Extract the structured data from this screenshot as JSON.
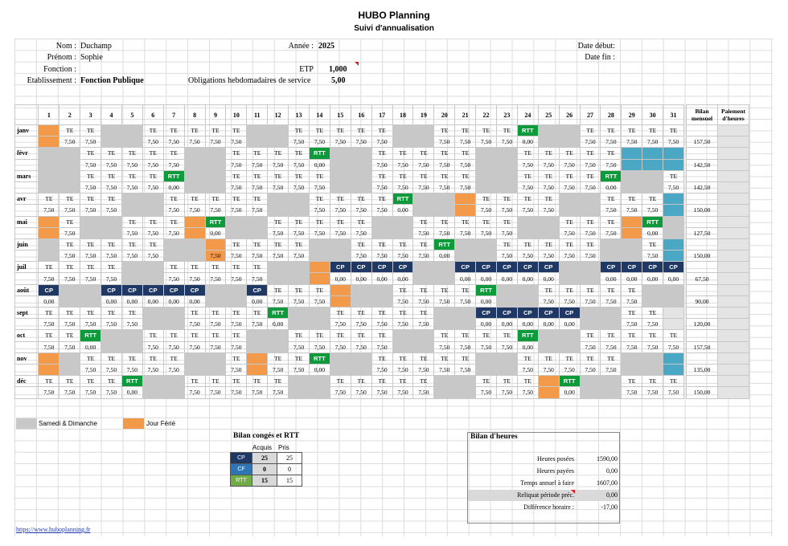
{
  "header": {
    "title": "HUBO Planning",
    "subtitle": "Suivi d'annualisation"
  },
  "info": {
    "nom_label": "Nom :",
    "nom": "Duchamp",
    "prenom_label": "Prénom :",
    "prenom": "Sophie",
    "fonction_label": "Fonction :",
    "fonction": "",
    "etab_label": "Etablissement :",
    "etab": "Fonction Publique",
    "annee_label": "Année :",
    "annee": "2025",
    "etp_label": "ETP",
    "etp": "1,000",
    "oblig_label": "Obligations hebdomadaires de service",
    "oblig": "5,00",
    "debut_label": "Date début:",
    "fin_label": "Date fin :"
  },
  "planning": {
    "col_bilan": "Bilan mensuel",
    "col_paiement": "Paiement d'heures",
    "days": [
      "1",
      "2",
      "3",
      "4",
      "5",
      "6",
      "7",
      "8",
      "9",
      "10",
      "11",
      "12",
      "13",
      "14",
      "15",
      "16",
      "17",
      "18",
      "19",
      "20",
      "21",
      "22",
      "23",
      "24",
      "25",
      "26",
      "27",
      "28",
      "29",
      "30",
      "31"
    ],
    "months": [
      {
        "name": "janv",
        "bilan": "157,50",
        "codes": "o,TE,TE,g,g,TE,TE,TE,TE,TE,g,g,TE,TE,TE,TE,TE,g,g,TE,TE,TE,TE,RTT,g,g,TE,TE,TE,TE,TE",
        "hours": "o,7,50,7,50,g,g,7,50,7,50,7,50,7,50,7,50,g,g,7,50,7,50,7,50,7,50,7,50,g,g,7,50,7,50,7,50,7,50,0,00,g,g,7,50,7,50,7,50,7,50,7,50"
      },
      {
        "name": "févr",
        "bilan": "142,50",
        "codes": "g,g,TE,TE,TE,TE,TE,g,g,TE,TE,TE,TE,RTT,g,g,TE,TE,TE,TE,TE,g,g,TE,TE,TE,TE,TE,q,q,q",
        "hours": "g,g,7,50,7,50,7,50,7,50,7,50,g,g,7,50,7,50,7,50,7,50,0,00,g,g,7,50,7,50,7,50,7,50,7,50,g,g,7,50,7,50,7,50,7,50,7,50,q,q,q"
      },
      {
        "name": "mars",
        "bilan": "142,50",
        "codes": "g,g,TE,TE,TE,TE,RTT,g,g,TE,TE,TE,TE,TE,g,g,TE,TE,TE,TE,TE,g,g,TE,TE,TE,TE,RTT,g,g,TE",
        "hours": "g,g,7,50,7,50,7,50,7,50,0,00,g,g,7,50,7,50,7,50,7,50,7,50,g,g,7,50,7,50,7,50,7,50,7,50,g,g,7,50,7,50,7,50,7,50,0,00,g,g,7,50"
      },
      {
        "name": "avr",
        "bilan": "150,00",
        "codes": "TE,TE,TE,TE,g,g,TE,TE,TE,TE,TE,g,g,TE,TE,TE,TE,RTT,g,g,o,TE,TE,TE,TE,g,g,TE,TE,TE,q",
        "hours": "7,50,7,50,7,50,7,50,g,g,7,50,7,50,7,50,7,50,7,50,g,g,7,50,7,50,7,50,7,50,0,00,g,g,o,7,50,7,50,7,50,7,50,g,g,7,50,7,50,7,50,q"
      },
      {
        "name": "mai",
        "bilan": "127,50",
        "codes": "o,TE,g,g,TE,TE,TE,o,RTT,g,g,TE,TE,TE,TE,TE,g,g,TE,TE,TE,TE,TE,g,g,TE,TE,TE,o,RTT,g",
        "hours": "o,7,50,g,g,7,50,7,50,7,50,o,0,00,g,g,7,50,7,50,7,50,7,50,7,50,g,g,7,50,7,50,7,50,7,50,7,50,g,g,7,50,7,50,7,50,o,0,00,g"
      },
      {
        "name": "juin",
        "bilan": "150,00",
        "codes": "g,TE,TE,TE,TE,TE,g,g,o,TE,TE,TE,TE,g,g,TE,TE,TE,TE,RTT,g,g,TE,TE,TE,TE,TE,g,g,TE,q",
        "hours": "g,7,50,7,50,7,50,7,50,7,50,g,g,o7,50,7,50,7,50,7,50,7,50,g,g,7,50,7,50,7,50,7,50,0,00,g,g,7,50,7,50,7,50,7,50,7,50,g,g,7,50,q"
      },
      {
        "name": "juil",
        "bilan": "67,50",
        "codes": "TE,TE,TE,TE,g,g,TE,TE,TE,TE,TE,g,g,o,CP,CP,CP,CP,g,g,CP,CP,CP,CP,CP,g,g,CP,CP,CP,CP",
        "hours": "7,50,7,50,7,50,7,50,g,g,7,50,7,50,7,50,7,50,7,50,g,g,o,0,00,0,00,0,00,0,00,g,g,0,00,0,00,0,00,0,00,0,00,g,g,0,00,0,00,0,00,0,00"
      },
      {
        "name": "août",
        "bilan": "90,00",
        "codes": "CP,g,g,CP,CP,CP,CP,CP,g,g,CP,TE,TE,TE,o,g,g,TE,TE,TE,TE,RTT,g,g,TE,TE,TE,TE,TE,g,g",
        "hours": "0,00,g,g,0,00,0,00,0,00,0,00,0,00,g,g,0,00,7,50,7,50,7,50,o,g,g,7,50,7,50,7,50,7,50,0,00,g,g,7,50,7,50,7,50,7,50,7,50,g,g"
      },
      {
        "name": "sept",
        "bilan": "120,00",
        "codes": "TE,TE,TE,TE,TE,g,g,TE,TE,TE,TE,RTT,g,g,TE,TE,TE,TE,TE,g,g,CP,CP,CP,CP,CP,g,g,TE,TE,pz",
        "hours": "7,50,7,50,7,50,7,50,7,50,g,g,7,50,7,50,7,50,7,50,0,00,g,g,7,50,7,50,7,50,7,50,7,50,g,g,0,00,0,00,0,00,0,00,0,00,g,g,7,50,7,50,pz"
      },
      {
        "name": "oct",
        "bilan": "157,50",
        "codes": "TE,TE,RTT,g,g,TE,TE,TE,TE,TE,g,g,TE,TE,TE,TE,TE,g,g,TE,TE,TE,TE,RTT,g,g,TE,TE,TE,TE,TE",
        "hours": "7,50,7,50,0,00,g,g,7,50,7,50,7,50,7,50,7,50,g,g,7,50,7,50,7,50,7,50,7,50,g,g,7,50,7,50,7,50,7,50,0,00,g,g,7,50,7,50,7,50,7,50,7,50"
      },
      {
        "name": "nov",
        "bilan": "135,00",
        "codes": "o,g,TE,TE,TE,TE,TE,g,g,TE,o,TE,TE,RTT,g,g,TE,TE,TE,TE,TE,g,g,TE,TE,TE,TE,TE,g,g,q",
        "hours": "o,g,7,50,7,50,7,50,7,50,7,50,g,g,7,50,o,7,50,7,50,0,00,g,g,7,50,7,50,7,50,7,50,7,50,g,g,7,50,7,50,7,50,7,50,7,50,g,g,q"
      },
      {
        "name": "déc",
        "bilan": "150,00",
        "codes": "TE,TE,TE,TE,RTT,g,g,TE,TE,TE,TE,TE,g,g,TE,TE,TE,TE,TE,g,g,TE,TE,TE,o,RTT,g,g,TE,TE,TE",
        "hours": "7,50,7,50,7,50,7,50,0,00,g,g,7,50,7,50,7,50,7,50,7,50,g,g,7,50,7,50,7,50,7,50,7,50,g,g,7,50,7,50,7,50,o,0,00,g,g,7,50,7,50,7,50"
      }
    ]
  },
  "legend": {
    "weekend": "Samedi & Dimanche",
    "ferie": "Jour Férié",
    "weekend_color": "#c8c8c8",
    "ferie_color": "#f39a4a"
  },
  "conges": {
    "title": "Bilan congés et RTT",
    "acquis": "Acquis",
    "pris": "Pris",
    "rows": [
      {
        "code": "CP",
        "acquis": "25",
        "pris": "25",
        "color": "#1f3864"
      },
      {
        "code": "CF",
        "acquis": "0",
        "pris": "0",
        "color": "#2e75b6"
      },
      {
        "code": "RTT",
        "acquis": "15",
        "pris": "15",
        "color": "#70ad47"
      }
    ]
  },
  "bilan": {
    "title": "Bilan d'heures",
    "rows": [
      {
        "label": "Heures posées",
        "value": "1590,00"
      },
      {
        "label": "Heures payées",
        "value": "0,00"
      },
      {
        "label": "Temps annuel à faire",
        "value": "1607,00"
      },
      {
        "label": "Reliquat période préc.",
        "value": "0,00"
      },
      {
        "label": "Différence horaire :",
        "value": "-17,00"
      }
    ]
  },
  "footer": {
    "link": "https://www.huboplanning.fr"
  }
}
